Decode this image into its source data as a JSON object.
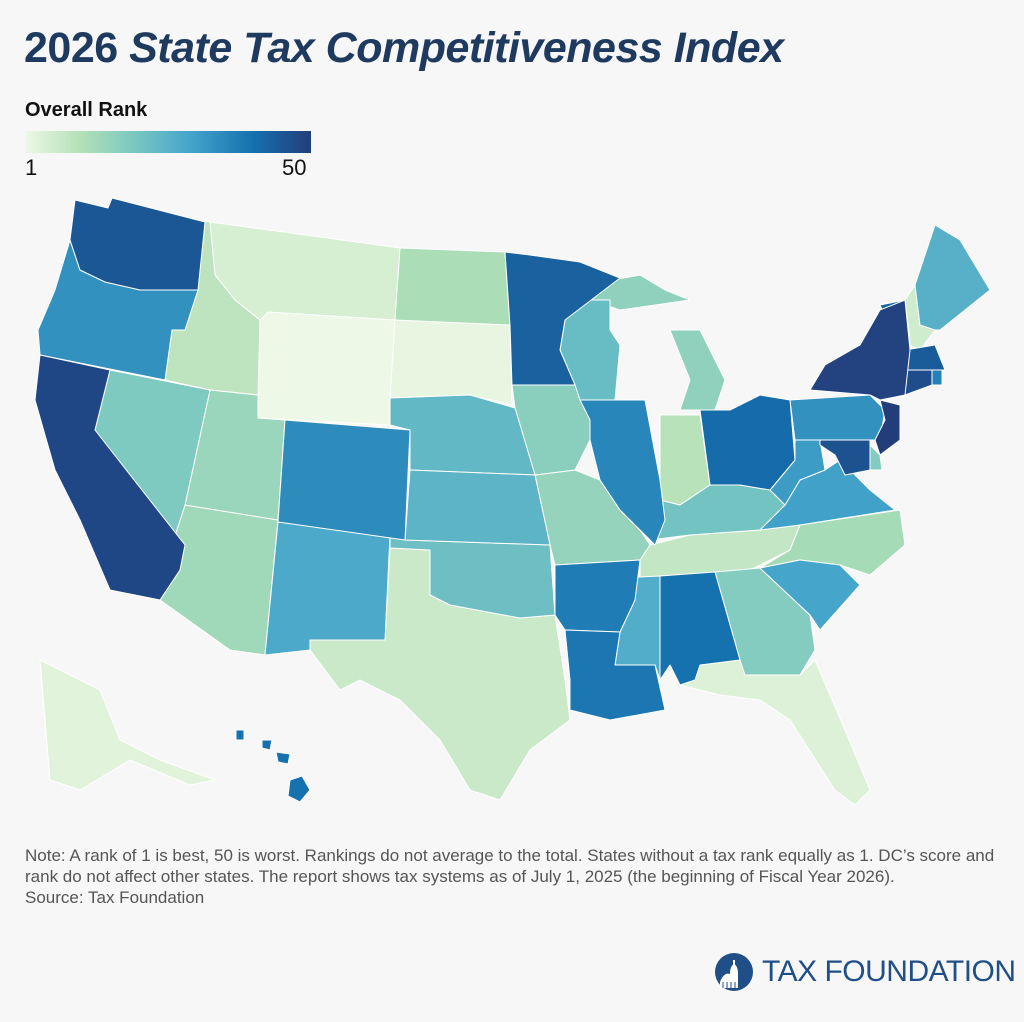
{
  "title": {
    "year": "2026",
    "rest": "State Tax Competitiveness Index"
  },
  "legend": {
    "title": "Overall Rank",
    "min": "1",
    "max": "50",
    "colors": [
      "#eef8e6",
      "#b2e0b6",
      "#7bc8c1",
      "#44a4cb",
      "#1570ae",
      "#233d7b"
    ]
  },
  "map_data": {
    "type": "choropleth",
    "value_name": "Overall Rank (estimated from color)",
    "states": [
      {
        "code": "WY",
        "rank": 1
      },
      {
        "code": "SD",
        "rank": 2
      },
      {
        "code": "AK",
        "rank": 3
      },
      {
        "code": "FL",
        "rank": 4
      },
      {
        "code": "MT",
        "rank": 5
      },
      {
        "code": "NH",
        "rank": 6
      },
      {
        "code": "TX",
        "rank": 7
      },
      {
        "code": "TN",
        "rank": 8
      },
      {
        "code": "ID",
        "rank": 9
      },
      {
        "code": "IN",
        "rank": 10
      },
      {
        "code": "ND",
        "rank": 12
      },
      {
        "code": "NC",
        "rank": 13
      },
      {
        "code": "AZ",
        "rank": 14
      },
      {
        "code": "UT",
        "rank": 15
      },
      {
        "code": "MO",
        "rank": 16
      },
      {
        "code": "MI",
        "rank": 17
      },
      {
        "code": "IA",
        "rank": 18
      },
      {
        "code": "GA",
        "rank": 19
      },
      {
        "code": "DE",
        "rank": 19
      },
      {
        "code": "NV",
        "rank": 20
      },
      {
        "code": "KY",
        "rank": 22
      },
      {
        "code": "OK",
        "rank": 23
      },
      {
        "code": "WI",
        "rank": 24
      },
      {
        "code": "NE",
        "rank": 25
      },
      {
        "code": "KS",
        "rank": 26
      },
      {
        "code": "ME",
        "rank": 27
      },
      {
        "code": "MS",
        "rank": 28
      },
      {
        "code": "NM",
        "rank": 29
      },
      {
        "code": "SC",
        "rank": 30
      },
      {
        "code": "VA",
        "rank": 31
      },
      {
        "code": "WV",
        "rank": 32
      },
      {
        "code": "PA",
        "rank": 34
      },
      {
        "code": "OR",
        "rank": 34
      },
      {
        "code": "CO",
        "rank": 35
      },
      {
        "code": "IL",
        "rank": 36
      },
      {
        "code": "RI",
        "rank": 37
      },
      {
        "code": "AR",
        "rank": 38
      },
      {
        "code": "LA",
        "rank": 39
      },
      {
        "code": "AL",
        "rank": 40
      },
      {
        "code": "HI",
        "rank": 40
      },
      {
        "code": "OH",
        "rank": 41
      },
      {
        "code": "VT",
        "rank": 42
      },
      {
        "code": "MN",
        "rank": 43
      },
      {
        "code": "MA",
        "rank": 44
      },
      {
        "code": "WA",
        "rank": 45
      },
      {
        "code": "MD",
        "rank": 46
      },
      {
        "code": "CT",
        "rank": 47
      },
      {
        "code": "CA",
        "rank": 48
      },
      {
        "code": "NY",
        "rank": 49
      },
      {
        "code": "NJ",
        "rank": 50
      }
    ]
  },
  "note": "Note: A rank of 1 is best, 50 is worst. Rankings do not average to the total. States without a tax rank equally as 1. DC’s score and rank do not affect other states. The report shows tax systems as of July 1, 2025 (the beginning of Fiscal Year 2026).",
  "source": "Source: Tax Foundation",
  "logo": {
    "text": "TAX FOUNDATION",
    "color": "#1f4f86"
  }
}
